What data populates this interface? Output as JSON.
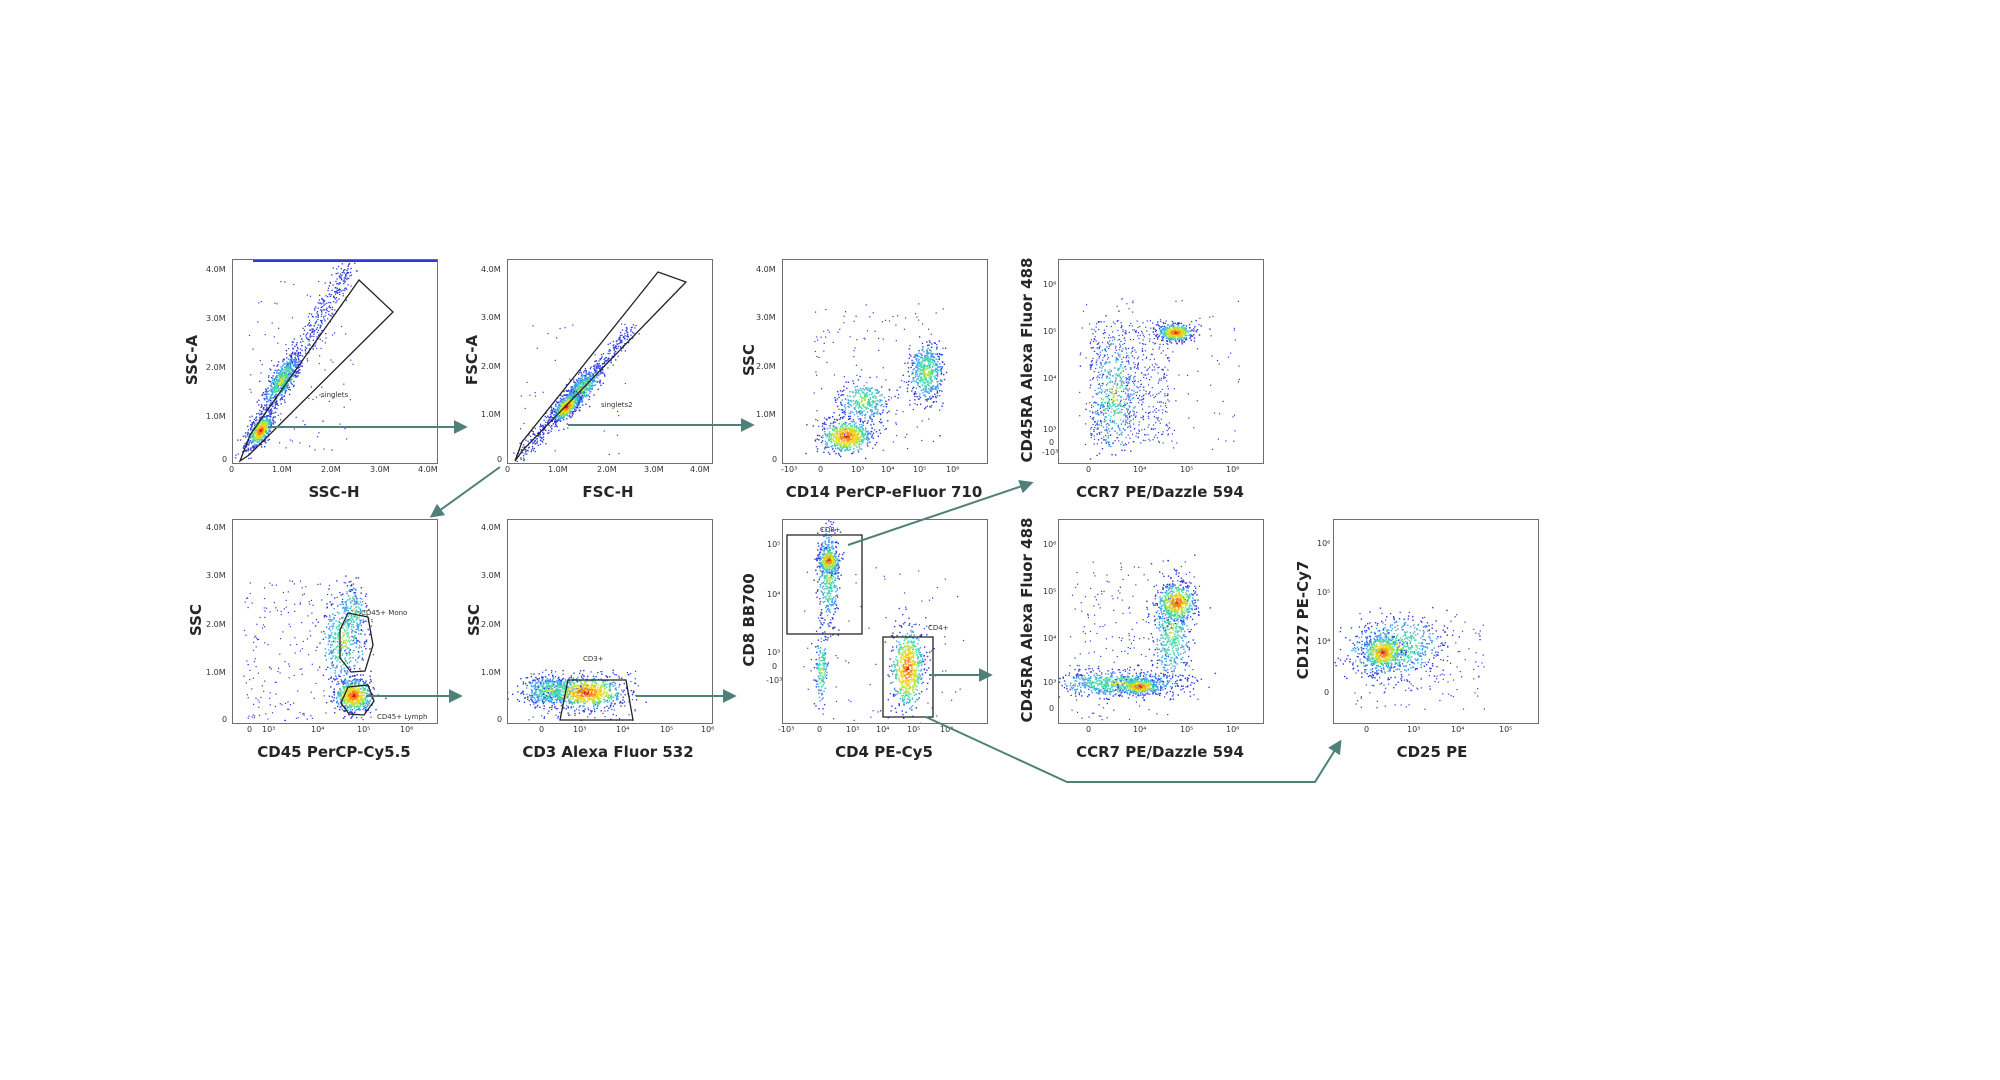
{
  "colors": {
    "arrow": "#4f8079",
    "gate": "#222222",
    "density": [
      "#2b3bd9",
      "#3aa0e8",
      "#44d7a8",
      "#b9e33a",
      "#f5d21b",
      "#f08b14",
      "#e0201c"
    ]
  },
  "panels": [
    {
      "id": "p1",
      "xlabel": "SSC-H",
      "ylabel": "SSC-A",
      "xticks": [
        "0",
        "1.0M",
        "2.0M",
        "3.0M",
        "4.0M"
      ],
      "yticks": [
        "0",
        "1.0M",
        "2.0M",
        "3.0M",
        "4.0M"
      ],
      "gates": [
        {
          "label": "singlets"
        }
      ]
    },
    {
      "id": "p2",
      "xlabel": "FSC-H",
      "ylabel": "FSC-A",
      "xticks": [
        "0",
        "1.0M",
        "2.0M",
        "3.0M",
        "4.0M"
      ],
      "yticks": [
        "0",
        "1.0M",
        "2.0M",
        "3.0M",
        "4.0M"
      ],
      "gates": [
        {
          "label": "singlets2"
        }
      ]
    },
    {
      "id": "p3",
      "xlabel": "CD14 PerCP-eFluor 710",
      "ylabel": "SSC",
      "xticks": [
        "-10³",
        "0",
        "10³",
        "10⁴",
        "10⁵",
        "10⁶"
      ],
      "yticks": [
        "0",
        "1.0M",
        "2.0M",
        "3.0M",
        "4.0M"
      ],
      "gates": []
    },
    {
      "id": "p4",
      "xlabel": "CCR7 PE/Dazzle 594",
      "ylabel": "CD45RA Alexa Fluor 488",
      "xticks": [
        "0",
        "10⁴",
        "10⁵",
        "10⁶"
      ],
      "yticks": [
        "-10³",
        "0",
        "10³",
        "10⁴",
        "10⁵",
        "10⁶"
      ],
      "gates": []
    },
    {
      "id": "p5",
      "xlabel": "CD45 PerCP-Cy5.5",
      "ylabel": "SSC",
      "xticks": [
        "0",
        "10³",
        "10⁴",
        "10⁵",
        "10⁶"
      ],
      "yticks": [
        "0",
        "1.0M",
        "2.0M",
        "3.0M",
        "4.0M"
      ],
      "gates": [
        {
          "label": "CD45+ Mono"
        },
        {
          "label": "CD45+ Lymph"
        }
      ]
    },
    {
      "id": "p6",
      "xlabel": "CD3 Alexa Fluor 532",
      "ylabel": "SSC",
      "xticks": [
        "0",
        "10³",
        "10⁴",
        "10⁵",
        "10⁶"
      ],
      "yticks": [
        "0",
        "1.0M",
        "2.0M",
        "3.0M",
        "4.0M"
      ],
      "gates": [
        {
          "label": "CD3+"
        }
      ]
    },
    {
      "id": "p7",
      "xlabel": "CD4 PE-Cy5",
      "ylabel": "CD8 BB700",
      "xticks": [
        "-10³",
        "0",
        "10³",
        "10⁴",
        "10⁵",
        "10⁶"
      ],
      "yticks": [
        "-10³",
        "0",
        "10³",
        "10⁴",
        "10⁵"
      ],
      "gates": [
        {
          "label": "CD8+"
        },
        {
          "label": "CD4+"
        }
      ]
    },
    {
      "id": "p8",
      "xlabel": "CCR7 PE/Dazzle 594",
      "ylabel": "CD45RA Alexa Fluor 488",
      "xticks": [
        "0",
        "10⁴",
        "10⁵",
        "10⁶"
      ],
      "yticks": [
        "0",
        "10³",
        "10⁴",
        "10⁵",
        "10⁶"
      ],
      "gates": []
    },
    {
      "id": "p9",
      "xlabel": "CD25 PE",
      "ylabel": "CD127 PE-Cy7",
      "xticks": [
        "0",
        "10³",
        "10⁴",
        "10⁵"
      ],
      "yticks": [
        "0",
        "10⁴",
        "10⁵",
        "10⁶"
      ],
      "gates": []
    }
  ]
}
